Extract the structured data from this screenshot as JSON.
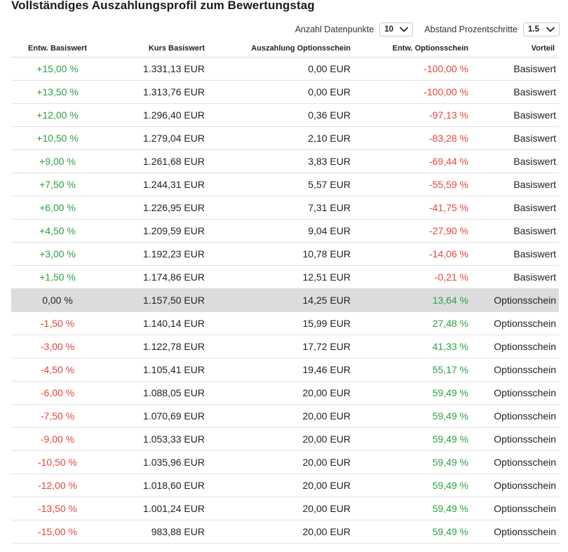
{
  "title": "Vollständiges Auszahlungsprofil zum Bewertungstag",
  "controls": {
    "datapoints_label": "Anzahl Datenpunkte",
    "datapoints_value": "10",
    "step_label": "Abstand Prozentschritte",
    "step_value": "1.5"
  },
  "table": {
    "headers": [
      "Entw. Basiswert",
      "Kurs Basiswert",
      "Auszahlung Optionsschein",
      "Entw. Optionsschein",
      "Vorteil"
    ],
    "rows": [
      [
        "+15,00 %",
        "1.331,13 EUR",
        "0,00 EUR",
        "-100,00 %",
        "Basiswert"
      ],
      [
        "+13,50 %",
        "1.313,76 EUR",
        "0,00 EUR",
        "-100,00 %",
        "Basiswert"
      ],
      [
        "+12,00 %",
        "1.296,40 EUR",
        "0,36 EUR",
        "-97,13 %",
        "Basiswert"
      ],
      [
        "+10,50 %",
        "1.279,04 EUR",
        "2,10 EUR",
        "-83,28 %",
        "Basiswert"
      ],
      [
        "+9,00 %",
        "1.261,68 EUR",
        "3,83 EUR",
        "-69,44 %",
        "Basiswert"
      ],
      [
        "+7,50 %",
        "1.244,31 EUR",
        "5,57 EUR",
        "-55,59 %",
        "Basiswert"
      ],
      [
        "+6,00 %",
        "1.226,95 EUR",
        "7,31 EUR",
        "-41,75 %",
        "Basiswert"
      ],
      [
        "+4,50 %",
        "1.209,59 EUR",
        "9,04 EUR",
        "-27,90 %",
        "Basiswert"
      ],
      [
        "+3,00 %",
        "1.192,23 EUR",
        "10,78 EUR",
        "-14,06 %",
        "Basiswert"
      ],
      [
        "+1,50 %",
        "1.174,86 EUR",
        "12,51 EUR",
        "-0,21 %",
        "Basiswert"
      ],
      [
        "0,00 %",
        "1.157,50 EUR",
        "14,25 EUR",
        "13,64 %",
        "Optionsschein"
      ],
      [
        "-1,50 %",
        "1.140,14 EUR",
        "15,99 EUR",
        "27,48 %",
        "Optionsschein"
      ],
      [
        "-3,00 %",
        "1.122,78 EUR",
        "17,72 EUR",
        "41,33 %",
        "Optionsschein"
      ],
      [
        "-4,50 %",
        "1.105,41 EUR",
        "19,46 EUR",
        "55,17 %",
        "Optionsschein"
      ],
      [
        "-6,00 %",
        "1.088,05 EUR",
        "20,00 EUR",
        "59,49 %",
        "Optionsschein"
      ],
      [
        "-7,50 %",
        "1.070,69 EUR",
        "20,00 EUR",
        "59,49 %",
        "Optionsschein"
      ],
      [
        "-9,00 %",
        "1.053,33 EUR",
        "20,00 EUR",
        "59,49 %",
        "Optionsschein"
      ],
      [
        "-10,50 %",
        "1.035,96 EUR",
        "20,00 EUR",
        "59,49 %",
        "Optionsschein"
      ],
      [
        "-12,00 %",
        "1.018,60 EUR",
        "20,00 EUR",
        "59,49 %",
        "Optionsschein"
      ],
      [
        "-13,50 %",
        "1.001,24 EUR",
        "20,00 EUR",
        "59,49 %",
        "Optionsschein"
      ],
      [
        "-15,00 %",
        "983,88 EUR",
        "20,00 EUR",
        "59,49 %",
        "Optionsschein"
      ]
    ],
    "highlight_row_index": 10
  },
  "colors": {
    "positive": "#2ea043",
    "negative": "#e5463b",
    "highlight_bg": "#dcdcdc"
  }
}
